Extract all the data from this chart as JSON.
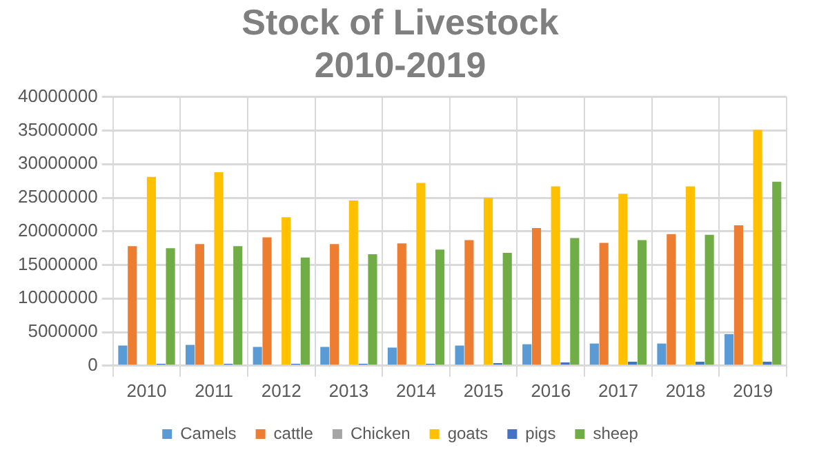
{
  "chart_data": {
    "type": "bar",
    "title": "Stock of Livestock\n2010-2019",
    "categories": [
      "2010",
      "2011",
      "2012",
      "2013",
      "2014",
      "2015",
      "2016",
      "2017",
      "2018",
      "2019"
    ],
    "series": [
      {
        "name": "Camels",
        "color": "#5b9bd5",
        "values": [
          3000000,
          3100000,
          2800000,
          2800000,
          2700000,
          3000000,
          3200000,
          3300000,
          3300000,
          4700000
        ]
      },
      {
        "name": "cattle",
        "color": "#ed7d31",
        "values": [
          17800000,
          18100000,
          19100000,
          18100000,
          18200000,
          18700000,
          20500000,
          18300000,
          19600000,
          20900000
        ]
      },
      {
        "name": "Chicken",
        "color": "#a5a5a5",
        "values": [
          0,
          0,
          0,
          0,
          0,
          0,
          0,
          0,
          0,
          0
        ]
      },
      {
        "name": "goats",
        "color": "#ffc000",
        "values": [
          28100000,
          28800000,
          22100000,
          24600000,
          27200000,
          25000000,
          26700000,
          25600000,
          26700000,
          35100000
        ]
      },
      {
        "name": "pigs",
        "color": "#4472c4",
        "values": [
          300000,
          300000,
          300000,
          300000,
          300000,
          400000,
          500000,
          600000,
          600000,
          600000
        ]
      },
      {
        "name": "sheep",
        "color": "#70ad47",
        "values": [
          17500000,
          17800000,
          16100000,
          16600000,
          17300000,
          16800000,
          19000000,
          18700000,
          19500000,
          27400000
        ]
      }
    ],
    "ylim": [
      0,
      40000000
    ],
    "yticks": [
      0,
      5000000,
      10000000,
      15000000,
      20000000,
      25000000,
      30000000,
      35000000,
      40000000
    ],
    "grid": true,
    "legend": "bottom"
  }
}
